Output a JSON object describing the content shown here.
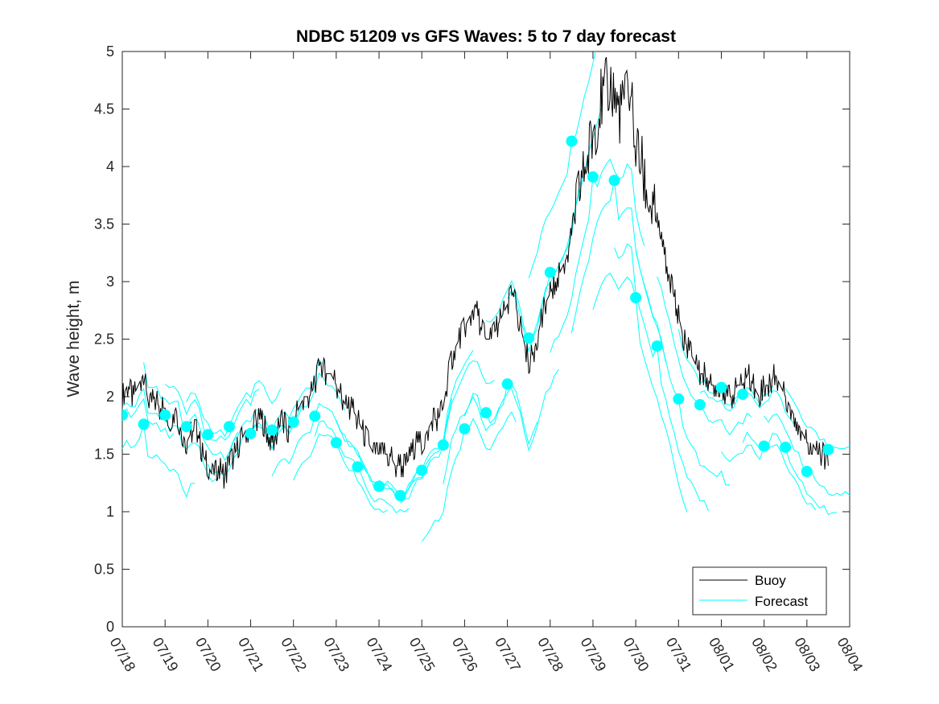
{
  "chart_data": {
    "type": "line",
    "title": "NDBC 51209 vs GFS Waves: 5 to 7 day forecast",
    "ylabel": "Wave height, m",
    "xlabel": "",
    "xlim": [
      "07/18 00:00",
      "08/04 00:00"
    ],
    "ylim": [
      0,
      5
    ],
    "x_tick_labels": [
      "07/18",
      "07/19",
      "07/20",
      "07/21",
      "07/22",
      "07/23",
      "07/24",
      "07/25",
      "07/26",
      "07/27",
      "07/28",
      "07/29",
      "07/30",
      "07/31",
      "08/01",
      "08/02",
      "08/03",
      "08/04"
    ],
    "y_tick_labels": [
      "0",
      "0.5",
      "1",
      "1.5",
      "2",
      "2.5",
      "3",
      "3.5",
      "4",
      "4.5",
      "5"
    ],
    "y_ticks": [
      0,
      0.5,
      1,
      1.5,
      2,
      2.5,
      3,
      3.5,
      4,
      4.5,
      5
    ],
    "grid": false,
    "legend": {
      "position": "bottom-right",
      "entries": [
        "Buoy",
        "Forecast"
      ]
    },
    "colors": {
      "buoy": "#000000",
      "forecast": "#00ffff",
      "axes": "#262626"
    },
    "series": [
      {
        "name": "Buoy",
        "x": [
          "07/18 00:00",
          "07/18 03:00",
          "07/18 06:00",
          "07/18 09:00",
          "07/18 12:00",
          "07/18 15:00",
          "07/18 18:00",
          "07/18 21:00",
          "07/19 00:00",
          "07/19 03:00",
          "07/19 06:00",
          "07/19 09:00",
          "07/19 12:00",
          "07/19 15:00",
          "07/19 18:00",
          "07/19 21:00",
          "07/20 00:00",
          "07/20 03:00",
          "07/20 06:00",
          "07/20 09:00",
          "07/20 12:00",
          "07/20 15:00",
          "07/20 18:00",
          "07/20 21:00",
          "07/21 00:00",
          "07/21 03:00",
          "07/21 06:00",
          "07/21 09:00",
          "07/21 12:00",
          "07/21 15:00",
          "07/21 18:00",
          "07/21 21:00",
          "07/22 00:00",
          "07/22 03:00",
          "07/22 06:00",
          "07/22 09:00",
          "07/22 12:00",
          "07/22 15:00",
          "07/22 18:00",
          "07/22 21:00",
          "07/23 00:00",
          "07/23 03:00",
          "07/23 06:00",
          "07/23 09:00",
          "07/23 12:00",
          "07/23 15:00",
          "07/23 18:00",
          "07/23 21:00",
          "07/24 00:00",
          "07/24 03:00",
          "07/24 06:00",
          "07/24 09:00",
          "07/24 12:00",
          "07/24 15:00",
          "07/24 18:00",
          "07/24 21:00",
          "07/25 00:00",
          "07/25 03:00",
          "07/25 06:00",
          "07/25 09:00",
          "07/25 12:00",
          "07/25 15:00",
          "07/25 18:00",
          "07/25 21:00",
          "07/26 00:00",
          "07/26 03:00",
          "07/26 06:00",
          "07/26 09:00",
          "07/26 12:00",
          "07/26 15:00",
          "07/26 18:00",
          "07/26 21:00",
          "07/27 00:00",
          "07/27 03:00",
          "07/27 06:00",
          "07/27 09:00",
          "07/27 12:00",
          "07/27 15:00",
          "07/27 18:00",
          "07/27 21:00",
          "07/28 00:00",
          "07/28 03:00",
          "07/28 06:00",
          "07/28 09:00",
          "07/28 12:00",
          "07/28 15:00",
          "07/28 18:00",
          "07/28 21:00",
          "07/29 00:00",
          "07/29 03:00",
          "07/29 06:00",
          "07/29 09:00",
          "07/29 12:00",
          "07/29 15:00",
          "07/29 18:00",
          "07/29 21:00",
          "07/30 00:00",
          "07/30 03:00",
          "07/30 06:00",
          "07/30 09:00",
          "07/30 12:00",
          "07/30 15:00",
          "07/30 18:00",
          "07/30 21:00",
          "07/31 00:00",
          "07/31 03:00",
          "07/31 06:00",
          "07/31 09:00",
          "07/31 12:00",
          "07/31 15:00",
          "07/31 18:00",
          "07/31 21:00",
          "08/01 00:00",
          "08/01 03:00",
          "08/01 06:00",
          "08/01 09:00",
          "08/01 12:00",
          "08/01 15:00",
          "08/01 18:00",
          "08/01 21:00",
          "08/02 00:00",
          "08/02 03:00",
          "08/02 06:00",
          "08/02 09:00",
          "08/02 12:00",
          "08/02 15:00",
          "08/02 18:00",
          "08/02 21:00",
          "08/03 00:00",
          "08/03 03:00",
          "08/03 06:00",
          "08/03 09:00",
          "08/03 12:00"
        ],
        "y": [
          2.0,
          2.1,
          2.0,
          2.1,
          2.2,
          1.9,
          2.0,
          1.9,
          1.9,
          1.8,
          1.9,
          1.7,
          1.6,
          1.7,
          1.7,
          1.5,
          1.4,
          1.3,
          1.4,
          1.3,
          1.4,
          1.5,
          1.6,
          1.7,
          1.7,
          1.8,
          1.8,
          1.7,
          1.6,
          1.7,
          1.8,
          1.7,
          1.8,
          1.9,
          2.0,
          2.0,
          2.1,
          2.3,
          2.2,
          2.2,
          2.1,
          2.0,
          1.9,
          1.9,
          1.8,
          1.7,
          1.6,
          1.5,
          1.5,
          1.5,
          1.5,
          1.4,
          1.4,
          1.4,
          1.5,
          1.6,
          1.6,
          1.7,
          1.8,
          1.8,
          1.9,
          2.2,
          2.4,
          2.5,
          2.6,
          2.7,
          2.8,
          2.6,
          2.5,
          2.5,
          2.6,
          2.7,
          2.8,
          2.9,
          2.7,
          2.5,
          2.3,
          2.4,
          2.6,
          2.8,
          2.9,
          3.0,
          3.1,
          3.2,
          3.4,
          3.7,
          3.9,
          4.1,
          4.3,
          4.5,
          4.6,
          4.7,
          4.6,
          4.5,
          4.6,
          4.7,
          4.2,
          4.0,
          3.8,
          3.6,
          3.5,
          3.3,
          3.1,
          2.9,
          2.7,
          2.5,
          2.4,
          2.3,
          2.2,
          2.2,
          2.1,
          2.1,
          2.1,
          2.0,
          2.0,
          2.1,
          2.1,
          2.2,
          2.1,
          2.0,
          2.1,
          2.1,
          2.2,
          2.1,
          2.0,
          1.9,
          1.8,
          1.7,
          1.6,
          1.6,
          1.5,
          1.5,
          1.4
        ]
      },
      {
        "name": "Forecast",
        "x": [
          "07/18 00:00",
          "07/18 12:00",
          "07/19 00:00",
          "07/19 12:00",
          "07/20 00:00",
          "07/20 12:00",
          "07/21 00:00",
          "07/21 12:00",
          "07/22 00:00",
          "07/22 12:00",
          "07/23 00:00",
          "07/23 12:00",
          "07/24 00:00",
          "07/24 12:00",
          "07/25 00:00",
          "07/25 12:00",
          "07/26 00:00",
          "07/26 12:00",
          "07/27 00:00",
          "07/27 12:00",
          "07/28 00:00",
          "07/28 12:00",
          "07/29 00:00",
          "07/29 12:00",
          "07/30 00:00",
          "07/30 12:00",
          "07/31 00:00",
          "07/31 12:00",
          "08/01 00:00",
          "08/01 12:00",
          "08/02 00:00",
          "08/02 12:00",
          "08/03 00:00",
          "08/03 12:00"
        ],
        "y": [
          1.84,
          1.76,
          1.84,
          1.74,
          1.67,
          1.74,
          1.68,
          1.71,
          1.78,
          1.83,
          1.6,
          1.39,
          1.22,
          1.14,
          1.36,
          1.58,
          1.72,
          1.86,
          2.11,
          2.51,
          3.08,
          4.22,
          3.91,
          3.88,
          2.86,
          2.44,
          1.98,
          1.93,
          2.08,
          2.02,
          1.57,
          1.56,
          1.35,
          1.54
        ]
      }
    ]
  }
}
